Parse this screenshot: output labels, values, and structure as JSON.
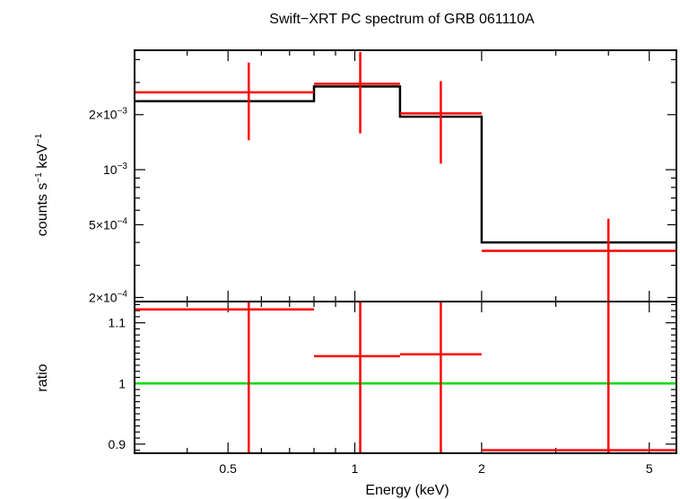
{
  "chart_data": [
    {
      "type": "line",
      "title": "Swift−XRT PC spectrum of GRB 061110A",
      "xlabel": "",
      "ylabel_main": "counts s",
      "ylabel_sup1": "−1",
      "ylabel_mid": " keV",
      "ylabel_sup2": "−1",
      "xscale": "log",
      "yscale": "log",
      "xlim": [
        0.3,
        5.8
      ],
      "ylim": [
        0.00019,
        0.0045
      ],
      "ytick_values": [
        0.0002,
        0.0005,
        0.001,
        0.002
      ],
      "ytick_labels": [
        {
          "base": "2×10",
          "exp": "−4"
        },
        {
          "base": "5×10",
          "exp": "−4"
        },
        {
          "base": "10",
          "exp": "−3"
        },
        {
          "base": "2×10",
          "exp": "−3"
        }
      ],
      "series": [
        {
          "kind": "data",
          "color": "#ff0000",
          "points": [
            {
              "x": 0.56,
              "xlo": 0.3,
              "xhi": 0.8,
              "y": 0.00265,
              "ylo": 0.00145,
              "yhi": 0.00385
            },
            {
              "x": 1.03,
              "xlo": 0.8,
              "xhi": 1.28,
              "y": 0.00295,
              "ylo": 0.00158,
              "yhi": 0.0044
            },
            {
              "x": 1.6,
              "xlo": 1.28,
              "xhi": 2.0,
              "y": 0.00203,
              "ylo": 0.00108,
              "yhi": 0.00305
            },
            {
              "x": 4.0,
              "xlo": 2.0,
              "xhi": 5.8,
              "y": 0.00036,
              "ylo": 0.00019,
              "yhi": 0.00054
            }
          ]
        },
        {
          "kind": "model",
          "color": "#000000",
          "steps": [
            {
              "xlo": 0.3,
              "xhi": 0.8,
              "y": 0.00237
            },
            {
              "xlo": 0.8,
              "xhi": 1.28,
              "y": 0.00285
            },
            {
              "xlo": 1.28,
              "xhi": 2.0,
              "y": 0.00195
            },
            {
              "xlo": 2.0,
              "xhi": 5.8,
              "y": 0.0004
            }
          ]
        }
      ]
    },
    {
      "type": "line",
      "xlabel": "Energy (keV)",
      "ylabel": "ratio",
      "xscale": "log",
      "yscale": "linear",
      "xlim": [
        0.3,
        5.8
      ],
      "ylim": [
        0.885,
        1.135
      ],
      "xtick_values": [
        0.5,
        1,
        2,
        5
      ],
      "xtick_labels": [
        "0.5",
        "1",
        "2",
        "5"
      ],
      "ytick_values": [
        0.9,
        1,
        1.1
      ],
      "ytick_labels": [
        "0.9",
        "1",
        "1.1"
      ],
      "reference_line": {
        "y": 1,
        "color": "#00dd00"
      },
      "series": [
        {
          "kind": "ratio",
          "color": "#ff0000",
          "points": [
            {
              "x": 0.56,
              "xlo": 0.3,
              "xhi": 0.8,
              "y": 1.122,
              "ylo": 0.885,
              "yhi": 1.135
            },
            {
              "x": 1.03,
              "xlo": 0.8,
              "xhi": 1.28,
              "y": 1.045,
              "ylo": 0.885,
              "yhi": 1.135
            },
            {
              "x": 1.6,
              "xlo": 1.28,
              "xhi": 2.0,
              "y": 1.048,
              "ylo": 0.885,
              "yhi": 1.135
            },
            {
              "x": 4.0,
              "xlo": 2.0,
              "xhi": 5.8,
              "y": 0.89,
              "ylo": 0.885,
              "yhi": 1.135
            }
          ]
        }
      ]
    }
  ]
}
